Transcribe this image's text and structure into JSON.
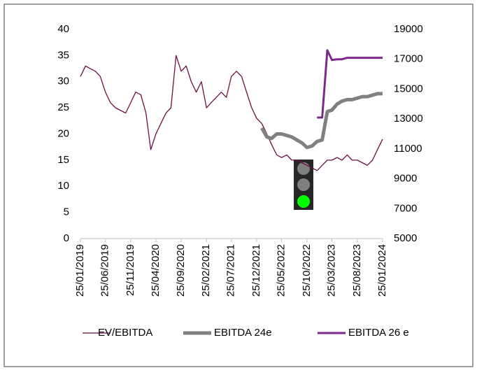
{
  "chart_data": {
    "type": "line",
    "x": [
      "25/01/2019",
      "25/02/2019",
      "25/03/2019",
      "25/04/2019",
      "25/05/2019",
      "25/06/2019",
      "25/07/2019",
      "25/08/2019",
      "25/09/2019",
      "25/10/2019",
      "25/11/2019",
      "25/12/2019",
      "25/01/2020",
      "25/02/2020",
      "25/03/2020",
      "25/04/2020",
      "25/05/2020",
      "25/06/2020",
      "25/07/2020",
      "25/08/2020",
      "25/09/2020",
      "25/10/2020",
      "25/11/2020",
      "25/12/2020",
      "25/01/2021",
      "25/02/2021",
      "25/03/2021",
      "25/04/2021",
      "25/05/2021",
      "25/06/2021",
      "25/07/2021",
      "25/08/2021",
      "25/09/2021",
      "25/10/2021",
      "25/11/2021",
      "25/12/2021",
      "25/01/2022",
      "25/02/2022",
      "25/03/2022",
      "25/04/2022",
      "25/05/2022",
      "25/06/2022",
      "25/07/2022",
      "25/08/2022",
      "25/09/2022",
      "25/10/2022",
      "25/11/2022",
      "25/12/2022",
      "25/01/2023",
      "25/02/2023",
      "25/03/2023",
      "25/04/2023",
      "25/05/2023",
      "25/06/2023",
      "25/07/2023",
      "25/08/2023",
      "25/09/2023",
      "25/10/2023",
      "25/11/2023",
      "25/12/2023",
      "25/01/2024"
    ],
    "xlim": [
      "25/01/2019",
      "25/01/2024"
    ],
    "xticks": [
      "25/01/2019",
      "25/06/2019",
      "25/11/2019",
      "25/04/2020",
      "25/09/2020",
      "25/02/2021",
      "25/07/2021",
      "25/12/2021",
      "25/05/2022",
      "25/10/2022",
      "25/03/2023",
      "25/08/2023",
      "25/01/2024"
    ],
    "ylim": [
      0,
      40
    ],
    "yticks": [
      0,
      5,
      10,
      15,
      20,
      25,
      30,
      35,
      40
    ],
    "y2lim": [
      5000,
      19000
    ],
    "y2ticks": [
      5000,
      7000,
      9000,
      11000,
      13000,
      15000,
      17000,
      19000
    ],
    "series": [
      {
        "name": "EV/EBITDA",
        "color": "#6b0f45",
        "width": 1.3,
        "values": [
          31,
          33,
          32.5,
          32,
          31,
          28,
          26,
          25,
          24.5,
          24,
          26,
          28,
          27.5,
          24,
          17,
          20,
          22,
          24,
          25,
          35,
          32,
          33,
          30,
          28,
          30,
          25,
          26,
          27,
          28,
          27,
          31,
          32,
          31,
          28,
          25,
          23,
          22,
          20,
          18,
          16,
          15.5,
          16,
          15,
          15,
          14.5,
          14,
          13.5,
          13,
          14,
          15,
          15,
          15.5,
          15,
          16,
          15,
          15,
          14.5,
          14,
          15,
          17,
          19
        ]
      },
      {
        "name": "EBITDA 24e",
        "color": "#808080",
        "width": 5,
        "axis": "y2",
        "values": [
          null,
          null,
          null,
          null,
          null,
          null,
          null,
          null,
          null,
          null,
          null,
          null,
          null,
          null,
          null,
          null,
          null,
          null,
          null,
          null,
          null,
          null,
          null,
          null,
          null,
          null,
          null,
          null,
          null,
          null,
          null,
          null,
          null,
          null,
          null,
          null,
          12400,
          11800,
          11700,
          12000,
          12000,
          11900,
          11800,
          11600,
          11400,
          11100,
          11200,
          11500,
          11600,
          13500,
          13600,
          14000,
          14200,
          14300,
          14300,
          14400,
          14500,
          14500,
          14600,
          14700,
          14700
        ]
      },
      {
        "name": "EBITDA 26 e",
        "color": "#7b2a8c",
        "width": 3,
        "axis": "y2",
        "values": [
          null,
          null,
          null,
          null,
          null,
          null,
          null,
          null,
          null,
          null,
          null,
          null,
          null,
          null,
          null,
          null,
          null,
          null,
          null,
          null,
          null,
          null,
          null,
          null,
          null,
          null,
          null,
          null,
          null,
          null,
          null,
          null,
          null,
          null,
          null,
          null,
          null,
          null,
          null,
          null,
          null,
          null,
          null,
          null,
          null,
          null,
          null,
          13100,
          13100,
          17600,
          16950,
          17000,
          17000,
          17100,
          17100,
          17100,
          17100,
          17100,
          17100,
          17100,
          17100
        ]
      }
    ]
  }
}
